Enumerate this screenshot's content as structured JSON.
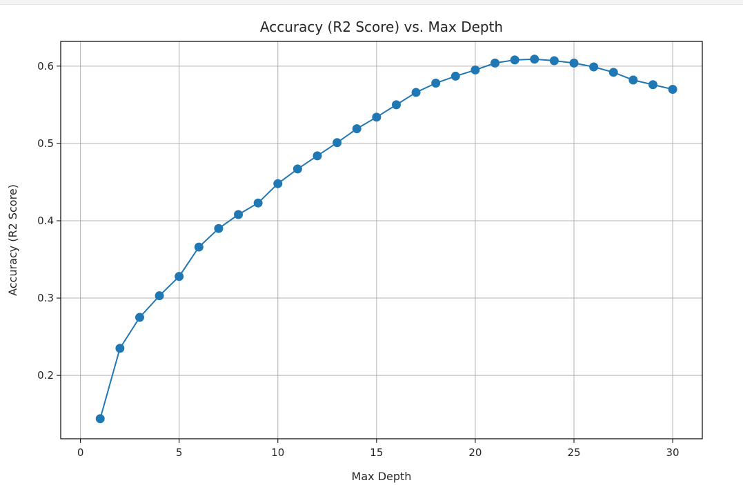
{
  "chart_data": {
    "type": "line",
    "title": "Accuracy (R2 Score) vs. Max Depth",
    "xlabel": "Max Depth",
    "ylabel": "Accuracy (R2 Score)",
    "xlim": [
      -1.0,
      31.5
    ],
    "ylim": [
      0.118,
      0.632
    ],
    "xticks": [
      0,
      5,
      10,
      15,
      20,
      25,
      30
    ],
    "yticks": [
      0.2,
      0.3,
      0.4,
      0.5,
      0.6
    ],
    "xtick_labels": [
      "0",
      "5",
      "10",
      "15",
      "20",
      "25",
      "30"
    ],
    "ytick_labels": [
      "0.2",
      "0.3",
      "0.4",
      "0.5",
      "0.6"
    ],
    "grid": true,
    "marker": "circle",
    "series": [
      {
        "color": "#1f77b4",
        "x": [
          1,
          2,
          3,
          4,
          5,
          6,
          7,
          8,
          9,
          10,
          11,
          12,
          13,
          14,
          15,
          16,
          17,
          18,
          19,
          20,
          21,
          22,
          23,
          24,
          25,
          26,
          27,
          28,
          29,
          30
        ],
        "y": [
          0.144,
          0.235,
          0.275,
          0.303,
          0.328,
          0.366,
          0.39,
          0.408,
          0.423,
          0.448,
          0.467,
          0.484,
          0.501,
          0.519,
          0.534,
          0.55,
          0.566,
          0.578,
          0.587,
          0.595,
          0.604,
          0.608,
          0.609,
          0.607,
          0.604,
          0.599,
          0.592,
          0.582,
          0.576,
          0.57
        ]
      }
    ]
  }
}
